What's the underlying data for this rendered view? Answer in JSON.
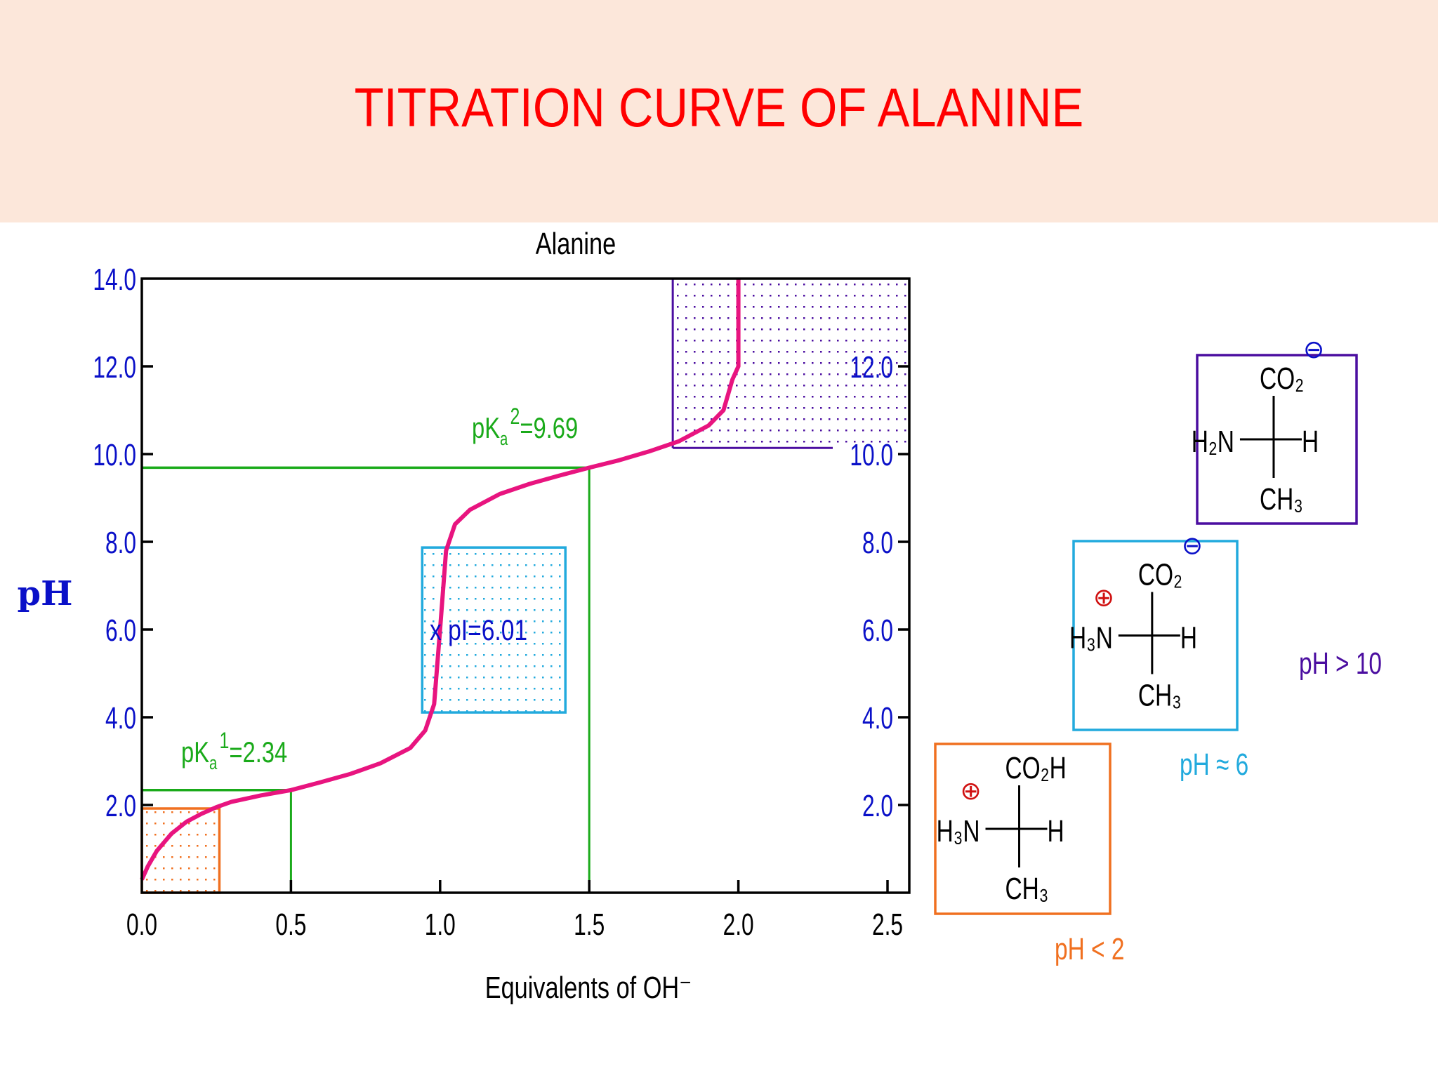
{
  "slide": {
    "title": "TITRATION CURVE OF ALANINE",
    "header_bg": "#fce7da",
    "title_color": "#ff0000"
  },
  "chart_data": {
    "type": "line",
    "title": "Alanine",
    "xlabel": "Equivalents of OH⁻",
    "ylabel": "pH",
    "xlim": [
      0.0,
      2.6
    ],
    "ylim": [
      0.0,
      14.0
    ],
    "x_ticks": [
      "0.0",
      "0.5",
      "1.0",
      "1.5",
      "2.0",
      "2.5"
    ],
    "y_ticks_left": [
      "14.0",
      "12.0",
      "10.0",
      "8.0",
      "6.0",
      "4.0",
      "2.0"
    ],
    "y_ticks_right": [
      "12.0",
      "10.0",
      "8.0",
      "6.0",
      "4.0",
      "2.0"
    ],
    "grid": false,
    "series": [
      {
        "name": "Alanine titration",
        "color": "#e8147f",
        "x": [
          0.0,
          0.02,
          0.05,
          0.1,
          0.15,
          0.2,
          0.25,
          0.3,
          0.4,
          0.5,
          0.6,
          0.7,
          0.8,
          0.9,
          0.95,
          0.98,
          1.0,
          1.02,
          1.05,
          1.1,
          1.2,
          1.3,
          1.4,
          1.5,
          1.6,
          1.7,
          1.8,
          1.9,
          1.95,
          1.98,
          2.0,
          2.0
        ],
        "y": [
          0.3,
          0.6,
          0.95,
          1.35,
          1.62,
          1.8,
          1.95,
          2.07,
          2.22,
          2.34,
          2.52,
          2.71,
          2.95,
          3.3,
          3.7,
          4.3,
          6.01,
          7.8,
          8.4,
          8.73,
          9.09,
          9.32,
          9.51,
          9.69,
          9.86,
          10.06,
          10.29,
          10.65,
          11.0,
          11.7,
          12.0,
          14.0
        ]
      }
    ],
    "annotations": [
      {
        "text_prefix": "pK",
        "sub": "a",
        "sup": "1",
        "text_suffix": "=2.34",
        "x": 0.5,
        "y": 2.34,
        "color": "#1aaa1a"
      },
      {
        "text_prefix": "pK",
        "sub": "a",
        "sup": "2",
        "text_suffix": "=9.69",
        "x": 1.5,
        "y": 9.69,
        "color": "#1aaa1a"
      },
      {
        "text": "x pI=6.01",
        "x": 1.0,
        "y": 6.01,
        "color": "#0a10c8"
      }
    ],
    "regions": [
      {
        "name": "low-pH",
        "x": [
          0.0,
          0.26
        ],
        "y": [
          0.0,
          1.92
        ],
        "color": "#f07020"
      },
      {
        "name": "isoelectric",
        "x": [
          0.94,
          1.42
        ],
        "y": [
          4.11,
          7.87
        ],
        "color": "#22aadd"
      },
      {
        "name": "high-pH",
        "x": [
          1.78,
          2.6
        ],
        "y": [
          10.14,
          14.0
        ],
        "color": "#4b0ea0"
      }
    ],
    "reference_lines": [
      {
        "kind": "pKa1",
        "x": 0.5,
        "y": 2.34
      },
      {
        "kind": "pKa2",
        "x": 1.5,
        "y": 9.69
      }
    ]
  },
  "structures": [
    {
      "id": "high",
      "condition": "pH > 10",
      "top": "CO₂",
      "left": "H₂N",
      "right": "H",
      "bottom": "CH₃",
      "charge_top": "⊖",
      "color": "#4b0ea0"
    },
    {
      "id": "mid",
      "condition": "pH ≈ 6",
      "top": "CO₂",
      "left": "H₃N",
      "right": "H",
      "bottom": "CH₃",
      "charge_top": "⊖",
      "charge_left": "⊕",
      "color": "#22aadd"
    },
    {
      "id": "low",
      "condition": "pH < 2",
      "top": "CO₂H",
      "left": "H₃N",
      "right": "H",
      "bottom": "CH₃",
      "charge_left": "⊕",
      "color": "#f07020"
    }
  ]
}
